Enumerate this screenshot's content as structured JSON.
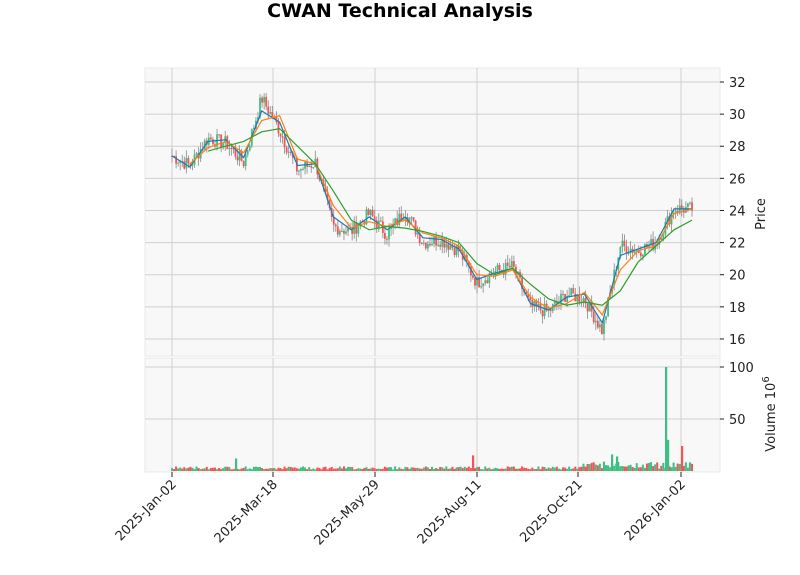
{
  "chart_data": [
    {
      "panel": "price",
      "type": "candlestick",
      "title": "CWAN Technical Analysis",
      "ylabel": "Price",
      "ylim": [
        15.0,
        32.8
      ],
      "yticks": [
        16,
        18,
        20,
        22,
        24,
        26,
        28,
        30,
        32
      ],
      "xtick_labels": [
        "2025-Jan-02",
        "2025-Mar-18",
        "2025-May-29",
        "2025-Aug-11",
        "2025-Oct-21",
        "2026-Jan-02"
      ],
      "grid": true,
      "colors": {
        "up": "#3dbf84",
        "down": "#f35454",
        "wick": "#888888",
        "ma_fast": "#1f77b4",
        "ma_mid": "#ff7f0e",
        "ma_slow": "#2ca02c",
        "panel_bg": "#f8f8f8",
        "grid": "#d0d0d0"
      },
      "series": [
        {
          "name": "close",
          "x": [
            "2025-Jan-02",
            "2025-Jan-15",
            "2025-Feb-01",
            "2025-Feb-15",
            "2025-Feb-28",
            "2025-Mar-07",
            "2025-Mar-18",
            "2025-Mar-31",
            "2025-Apr-08",
            "2025-Apr-22",
            "2025-May-07",
            "2025-May-20",
            "2025-May-29",
            "2025-Jun-10",
            "2025-Jun-25",
            "2025-Jul-10",
            "2025-Jul-25",
            "2025-Aug-11",
            "2025-Aug-25",
            "2025-Sep-10",
            "2025-Sep-25",
            "2025-Oct-08",
            "2025-Oct-21",
            "2025-Nov-03",
            "2025-Nov-12",
            "2025-Nov-25",
            "2025-Dec-10",
            "2025-Dec-22",
            "2026-Jan-02",
            "2026-Jan-09"
          ],
          "values": [
            27.4,
            26.8,
            28.5,
            28.2,
            27.0,
            31.0,
            29.0,
            26.5,
            27.0,
            23.0,
            22.7,
            23.8,
            22.5,
            24.0,
            22.0,
            22.2,
            21.5,
            19.5,
            20.2,
            20.5,
            18.0,
            17.7,
            18.8,
            18.5,
            16.5,
            21.8,
            21.5,
            22.0,
            24.1,
            24.1
          ]
        },
        {
          "name": "MA fast",
          "values": [
            27.4,
            26.7,
            28.3,
            28.4,
            27.3,
            30.2,
            29.5,
            26.8,
            26.9,
            23.6,
            22.8,
            23.6,
            22.8,
            23.6,
            22.3,
            22.2,
            21.6,
            19.7,
            20.1,
            20.4,
            18.2,
            17.8,
            18.6,
            18.8,
            17.0,
            21.2,
            21.6,
            22.0,
            24.1,
            24.1
          ]
        },
        {
          "name": "MA mid",
          "values": [
            null,
            26.9,
            27.9,
            28.3,
            27.6,
            29.6,
            29.9,
            27.2,
            26.9,
            24.3,
            22.9,
            23.3,
            23.0,
            23.4,
            22.6,
            22.3,
            21.8,
            20.0,
            19.9,
            20.3,
            18.6,
            17.9,
            18.2,
            18.9,
            17.5,
            20.3,
            21.5,
            21.8,
            23.8,
            24.1
          ]
        },
        {
          "name": "MA slow",
          "values": [
            null,
            null,
            27.7,
            28.0,
            28.3,
            28.9,
            29.1,
            28.0,
            26.9,
            25.2,
            23.4,
            22.8,
            23.0,
            22.9,
            22.7,
            22.4,
            22.0,
            20.7,
            20.0,
            20.4,
            19.4,
            18.5,
            18.1,
            18.3,
            18.1,
            19.0,
            20.8,
            21.8,
            22.8,
            23.4
          ]
        }
      ]
    },
    {
      "panel": "volume",
      "type": "bar",
      "ylabel": "Volume  10^6",
      "ylim": [
        0,
        104
      ],
      "yticks": [
        50,
        100
      ],
      "note": "daily volume bars colored by up/down day; mostly 1-5M with spikes",
      "spikes": [
        {
          "x": "2025-Feb-21",
          "value": 12,
          "color": "up"
        },
        {
          "x": "2025-Aug-06",
          "value": 15,
          "color": "down"
        },
        {
          "x": "2025-Nov-20",
          "value": 16,
          "color": "up"
        },
        {
          "x": "2025-Nov-26",
          "value": 14,
          "color": "up"
        },
        {
          "x": "2025-Dec-26",
          "value": 100,
          "color": "up"
        },
        {
          "x": "2025-Dec-29",
          "value": 30,
          "color": "up"
        },
        {
          "x": "2026-Jan-05",
          "value": 24,
          "color": "down"
        }
      ]
    }
  ]
}
